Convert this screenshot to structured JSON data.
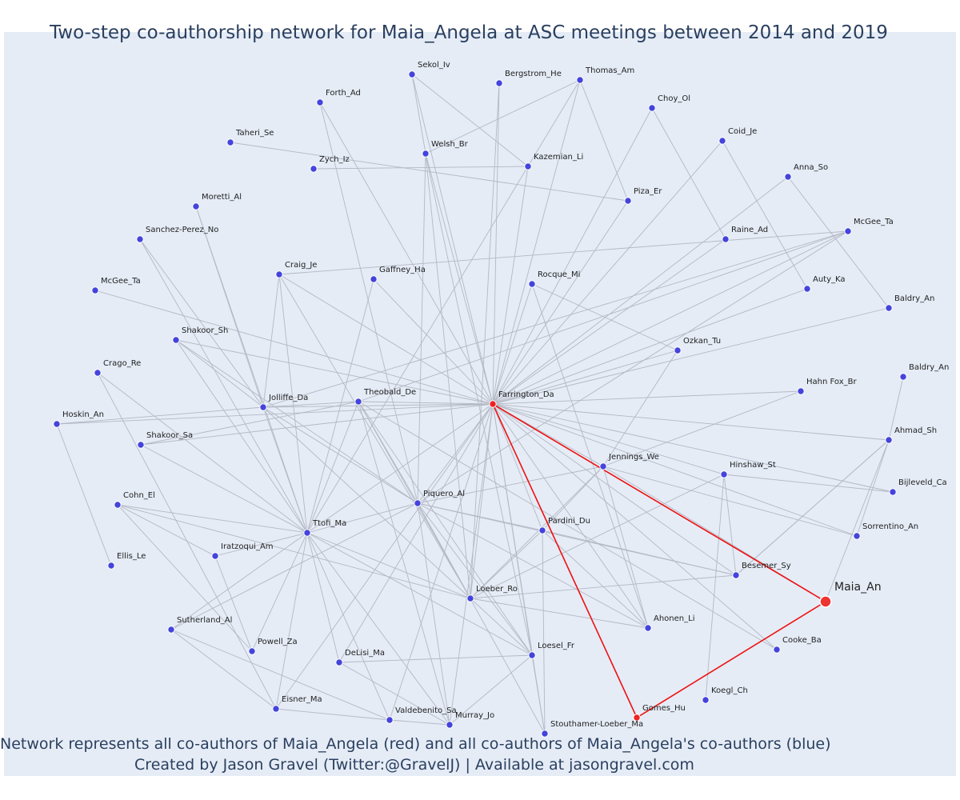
{
  "title": "Two-step co-authorship network for Maia_Angela at ASC meetings between 2014 and 2019",
  "caption_line1": "Network represents all co-authors of Maia_Angela (red) and all co-authors of Maia_Angela's co-authors (blue)",
  "caption_line2": "Created by Jason Gravel (Twitter:@GravelJ) | Available at jasongravel.com",
  "colors": {
    "background": "#e5ecf6",
    "edge": "#b4b8c4",
    "highlight_edge": "#ee1111",
    "coauthor_node": "#4444dd",
    "red_node": "#ee2222",
    "focal_node": "#ee3333"
  },
  "focal": "Maia_An",
  "nodes": [
    {
      "id": "Sekol_Iv",
      "group": "blue"
    },
    {
      "id": "Bergstrom_He",
      "group": "blue"
    },
    {
      "id": "Thomas_Am",
      "group": "blue"
    },
    {
      "id": "Forth_Ad",
      "group": "blue"
    },
    {
      "id": "Choy_Ol",
      "group": "blue"
    },
    {
      "id": "Taheri_Se",
      "group": "blue"
    },
    {
      "id": "Coid_Je",
      "group": "blue"
    },
    {
      "id": "Welsh_Br",
      "group": "blue"
    },
    {
      "id": "Kazemian_Li",
      "group": "blue"
    },
    {
      "id": "Zych_Iz",
      "group": "blue"
    },
    {
      "id": "Anna_So",
      "group": "blue"
    },
    {
      "id": "Piza_Er",
      "group": "blue"
    },
    {
      "id": "Moretti_Al",
      "group": "blue"
    },
    {
      "id": "McGee_Ta",
      "group": "blue"
    },
    {
      "id": "Sanchez-Perez_No",
      "group": "blue"
    },
    {
      "id": "Raine_Ad",
      "group": "blue"
    },
    {
      "id": "Craig_Je",
      "group": "blue"
    },
    {
      "id": "Gaffney_Ha",
      "group": "blue"
    },
    {
      "id": "Rocque_Mi",
      "group": "blue"
    },
    {
      "id": "Auty_Ka",
      "group": "blue"
    },
    {
      "id": "McGee_Ta",
      "group": "blue"
    },
    {
      "id": "Baldry_An",
      "group": "blue"
    },
    {
      "id": "Shakoor_Sh",
      "group": "blue"
    },
    {
      "id": "Ozkan_Tu",
      "group": "blue"
    },
    {
      "id": "Crago_Re",
      "group": "blue"
    },
    {
      "id": "Baldry_An",
      "group": "blue"
    },
    {
      "id": "Theobald_De",
      "group": "blue"
    },
    {
      "id": "Farrington_Da",
      "group": "red"
    },
    {
      "id": "Hahn Fox_Br",
      "group": "blue"
    },
    {
      "id": "Jolliffe_Da",
      "group": "blue"
    },
    {
      "id": "Hoskin_An",
      "group": "blue"
    },
    {
      "id": "Ahmad_Sh",
      "group": "blue"
    },
    {
      "id": "Shakoor_Sa",
      "group": "blue"
    },
    {
      "id": "Jennings_We",
      "group": "blue"
    },
    {
      "id": "Hinshaw_St",
      "group": "blue"
    },
    {
      "id": "Bijleveld_Ca",
      "group": "blue"
    },
    {
      "id": "Cohn_El",
      "group": "blue"
    },
    {
      "id": "Piquero_Al",
      "group": "blue"
    },
    {
      "id": "Ttofi_Ma",
      "group": "blue"
    },
    {
      "id": "Pardini_Du",
      "group": "blue"
    },
    {
      "id": "Sorrentino_An",
      "group": "blue"
    },
    {
      "id": "Iratzoqui_Am",
      "group": "blue"
    },
    {
      "id": "Ellis_Le",
      "group": "blue"
    },
    {
      "id": "Besemer_Sy",
      "group": "blue"
    },
    {
      "id": "Loeber_Ro",
      "group": "blue"
    },
    {
      "id": "Sutherland_Al",
      "group": "blue"
    },
    {
      "id": "Ahonen_Li",
      "group": "blue"
    },
    {
      "id": "Powell_Za",
      "group": "blue"
    },
    {
      "id": "Cooke_Ba",
      "group": "blue"
    },
    {
      "id": "DeLisi_Ma",
      "group": "blue"
    },
    {
      "id": "Loesel_Fr",
      "group": "blue"
    },
    {
      "id": "Koegl_Ch",
      "group": "blue"
    },
    {
      "id": "Eisner_Ma",
      "group": "blue"
    },
    {
      "id": "Gomes_Hu",
      "group": "red"
    },
    {
      "id": "Valdebenito_Sa",
      "group": "blue"
    },
    {
      "id": "Murray_Jo",
      "group": "blue"
    },
    {
      "id": "Stouthamer-Loeber_Ma",
      "group": "blue"
    },
    {
      "id": "Maia_An",
      "group": "focal"
    }
  ],
  "edges": [
    [
      27,
      0
    ],
    [
      27,
      1
    ],
    [
      27,
      2
    ],
    [
      27,
      3
    ],
    [
      27,
      4
    ],
    [
      27,
      6
    ],
    [
      27,
      7
    ],
    [
      27,
      8
    ],
    [
      27,
      10
    ],
    [
      27,
      11
    ],
    [
      27,
      13
    ],
    [
      27,
      15
    ],
    [
      27,
      16
    ],
    [
      27,
      17
    ],
    [
      27,
      18
    ],
    [
      27,
      19
    ],
    [
      27,
      20
    ],
    [
      27,
      21
    ],
    [
      27,
      22
    ],
    [
      27,
      23
    ],
    [
      27,
      26
    ],
    [
      27,
      28
    ],
    [
      27,
      29
    ],
    [
      27,
      30
    ],
    [
      27,
      31
    ],
    [
      27,
      32
    ],
    [
      27,
      33
    ],
    [
      27,
      34
    ],
    [
      27,
      35
    ],
    [
      27,
      37
    ],
    [
      27,
      38
    ],
    [
      27,
      39
    ],
    [
      27,
      40
    ],
    [
      27,
      43
    ],
    [
      27,
      44
    ],
    [
      27,
      46
    ],
    [
      27,
      48
    ],
    [
      27,
      50
    ],
    [
      27,
      52
    ],
    [
      27,
      54
    ],
    [
      27,
      55
    ],
    [
      27,
      56
    ],
    [
      27,
      57
    ],
    [
      27,
      49
    ],
    [
      57,
      33
    ],
    [
      57,
      53
    ],
    [
      53,
      27
    ],
    [
      0,
      7
    ],
    [
      0,
      8
    ],
    [
      5,
      11
    ],
    [
      9,
      8
    ],
    [
      2,
      7
    ],
    [
      2,
      11
    ],
    [
      3,
      37
    ],
    [
      4,
      15
    ],
    [
      6,
      19
    ],
    [
      10,
      21
    ],
    [
      25,
      31
    ],
    [
      31,
      40
    ],
    [
      31,
      43
    ],
    [
      7,
      50
    ],
    [
      7,
      37
    ],
    [
      7,
      44
    ],
    [
      12,
      29
    ],
    [
      12,
      38
    ],
    [
      14,
      29
    ],
    [
      14,
      38
    ],
    [
      16,
      13
    ],
    [
      16,
      38
    ],
    [
      16,
      29
    ],
    [
      16,
      44
    ],
    [
      13,
      26
    ],
    [
      13,
      29
    ],
    [
      13,
      37
    ],
    [
      22,
      29
    ],
    [
      22,
      38
    ],
    [
      22,
      37
    ],
    [
      24,
      38
    ],
    [
      24,
      52
    ],
    [
      26,
      29
    ],
    [
      26,
      38
    ],
    [
      26,
      37
    ],
    [
      26,
      44
    ],
    [
      26,
      50
    ],
    [
      26,
      55
    ],
    [
      29,
      38
    ],
    [
      29,
      37
    ],
    [
      29,
      44
    ],
    [
      29,
      30
    ],
    [
      32,
      38
    ],
    [
      32,
      26
    ],
    [
      36,
      41
    ],
    [
      36,
      38
    ],
    [
      36,
      47
    ],
    [
      36,
      44
    ],
    [
      30,
      42
    ],
    [
      41,
      47
    ],
    [
      41,
      38
    ],
    [
      38,
      37
    ],
    [
      38,
      44
    ],
    [
      38,
      49
    ],
    [
      38,
      50
    ],
    [
      38,
      54
    ],
    [
      38,
      52
    ],
    [
      38,
      47
    ],
    [
      38,
      45
    ],
    [
      38,
      55
    ],
    [
      37,
      39
    ],
    [
      37,
      44
    ],
    [
      37,
      50
    ],
    [
      37,
      55
    ],
    [
      37,
      56
    ],
    [
      37,
      45
    ],
    [
      37,
      33
    ],
    [
      37,
      43
    ],
    [
      37,
      46
    ],
    [
      39,
      44
    ],
    [
      39,
      43
    ],
    [
      39,
      46
    ],
    [
      39,
      33
    ],
    [
      39,
      56
    ],
    [
      44,
      43
    ],
    [
      44,
      50
    ],
    [
      44,
      46
    ],
    [
      44,
      34
    ],
    [
      44,
      33
    ],
    [
      33,
      28
    ],
    [
      33,
      23
    ],
    [
      33,
      40
    ],
    [
      33,
      46
    ],
    [
      34,
      43
    ],
    [
      34,
      51
    ],
    [
      34,
      35
    ],
    [
      43,
      31
    ],
    [
      18,
      46
    ],
    [
      18,
      23
    ],
    [
      17,
      38
    ],
    [
      45,
      54
    ],
    [
      45,
      52
    ],
    [
      49,
      50
    ],
    [
      49,
      55
    ],
    [
      50,
      55
    ],
    [
      52,
      54
    ],
    [
      57,
      31
    ],
    [
      1,
      44
    ],
    [
      2,
      38
    ],
    [
      48,
      26
    ],
    [
      50,
      56
    ],
    [
      55,
      54
    ]
  ]
}
